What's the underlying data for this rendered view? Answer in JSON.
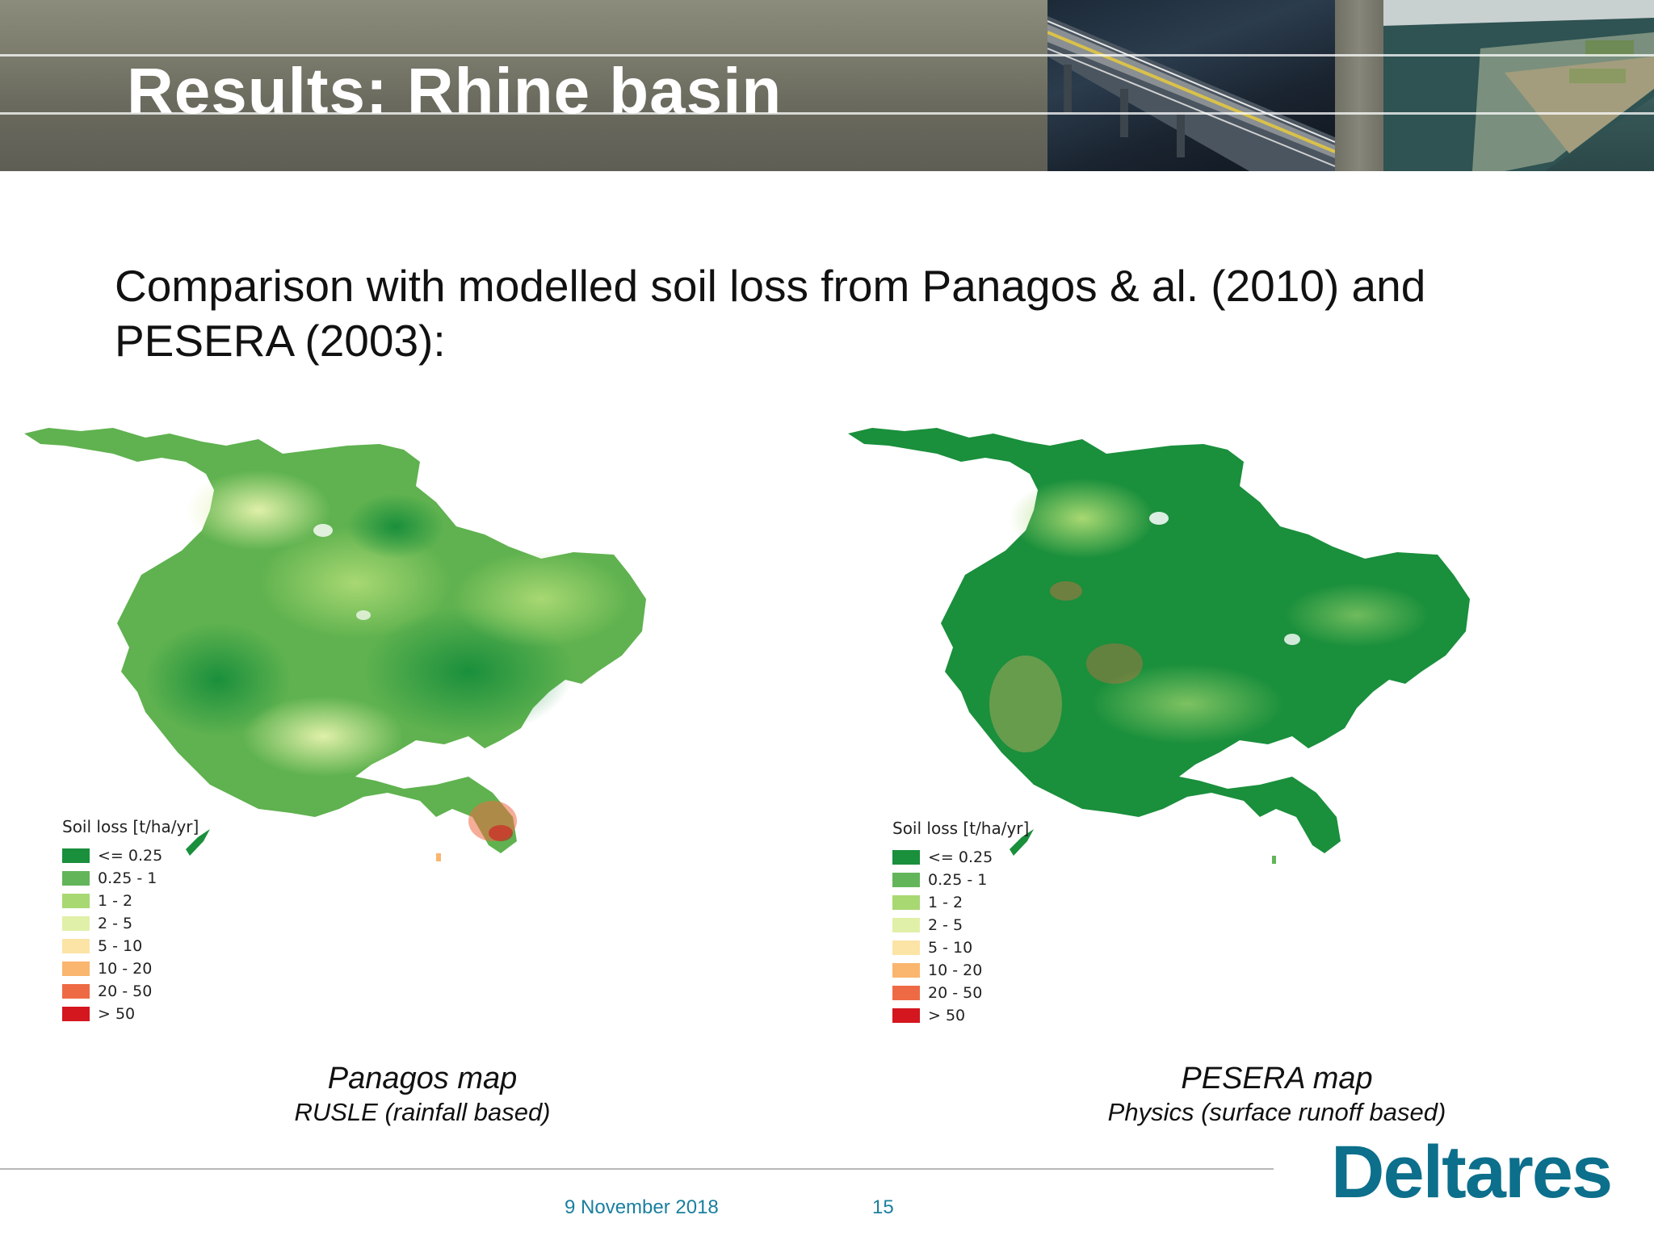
{
  "header": {
    "title": "Results: Rhine basin"
  },
  "subtitle_lines": [
    "Comparison with modelled soil loss from Panagos & al. (2010) and",
    "PESERA (2003):"
  ],
  "legend": {
    "title": "Soil loss [t/ha/yr]",
    "classes": [
      {
        "label": "<= 0.25",
        "color": "#1a8f3c"
      },
      {
        "label": "0.25 - 1",
        "color": "#63b55a"
      },
      {
        "label": "1 - 2",
        "color": "#a8d872"
      },
      {
        "label": "2 - 5",
        "color": "#e0f0a8"
      },
      {
        "label": "5 - 10",
        "color": "#fce4a6"
      },
      {
        "label": "10 - 20",
        "color": "#fab56e"
      },
      {
        "label": "20 - 50",
        "color": "#ee6a44"
      },
      {
        "label": "> 50",
        "color": "#d4161f"
      }
    ]
  },
  "maps": [
    {
      "caption": "Panagos map",
      "subcaption": "RUSLE (rainfall based)"
    },
    {
      "caption": "PESERA map",
      "subcaption": "Physics (surface runoff based)"
    }
  ],
  "footer": {
    "date": "9 November 2018",
    "page": "15",
    "logo": "Deltares"
  },
  "colors": {
    "accent": "#1a7f9f",
    "logo": "#0c6f8b"
  }
}
